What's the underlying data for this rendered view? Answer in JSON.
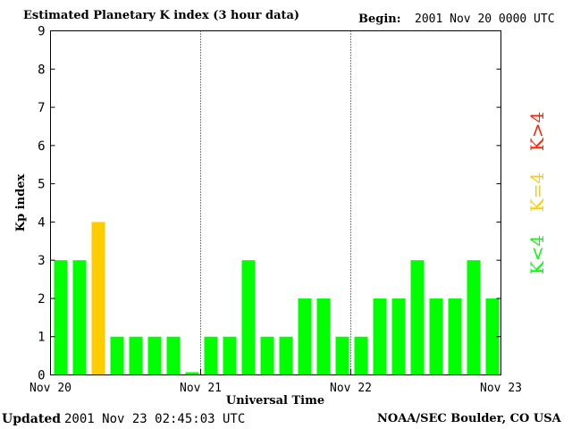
{
  "header": {
    "title": "Estimated Planetary K index (3 hour data)",
    "begin_label": "Begin:",
    "begin_value": "2001 Nov 20 0000 UTC"
  },
  "footer": {
    "updated_label": "Updated",
    "updated_value": "2001 Nov 23 02:45:03 UTC",
    "credit": "NOAA/SEC Boulder, CO USA"
  },
  "chart_data": {
    "type": "bar",
    "title": "Estimated Planetary K index (3 hour data)",
    "xlabel": "Universal Time",
    "ylabel": "Kp index",
    "ylim": [
      0,
      9
    ],
    "yticks": [
      "0",
      "1",
      "2",
      "3",
      "4",
      "5",
      "6",
      "7",
      "8",
      "9"
    ],
    "xticks": [
      "Nov 20",
      "Nov 21",
      "Nov 22",
      "Nov 23"
    ],
    "bins_per_day": 8,
    "values": [
      3,
      3,
      4,
      1,
      1,
      1,
      1,
      0.05,
      1,
      1,
      3,
      1,
      1,
      2,
      2,
      1,
      1,
      2,
      2,
      3,
      2,
      2,
      3,
      2
    ],
    "grid": "dotted vertical lines at day boundaries",
    "legend": [
      {
        "label": "K<4",
        "color": "#00ff00"
      },
      {
        "label": "K=4",
        "color": "#ffcc00"
      },
      {
        "label": "K>4",
        "color": "#ff2200"
      }
    ]
  }
}
